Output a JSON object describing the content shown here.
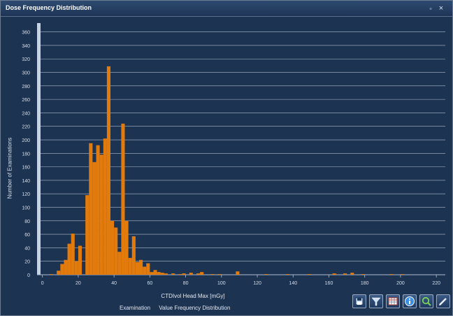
{
  "window": {
    "title": "Dose Frequency Distribution",
    "restore_glyph": "▫",
    "close_glyph": "×"
  },
  "chart_data": {
    "type": "bar",
    "xlabel": "CTDIvol Head Max    [mGy]",
    "ylabel": "Number of Examinations",
    "xlim": [
      -3,
      225
    ],
    "ylim": [
      0,
      370
    ],
    "xticks": [
      0,
      20,
      40,
      60,
      80,
      100,
      120,
      140,
      160,
      180,
      200,
      220
    ],
    "yticks": [
      0,
      20,
      40,
      60,
      80,
      100,
      120,
      140,
      160,
      180,
      200,
      220,
      240,
      260,
      280,
      300,
      320,
      340,
      360
    ],
    "bin_width": 2,
    "bar_color": "#e27a0c",
    "background": "#1d3352",
    "grid": true,
    "series": [
      {
        "bins": [
          {
            "x": 4,
            "y": 1
          },
          {
            "x": 8,
            "y": 6
          },
          {
            "x": 10,
            "y": 16
          },
          {
            "x": 12,
            "y": 22
          },
          {
            "x": 14,
            "y": 46
          },
          {
            "x": 16,
            "y": 61
          },
          {
            "x": 18,
            "y": 20
          },
          {
            "x": 20,
            "y": 43
          },
          {
            "x": 24,
            "y": 118
          },
          {
            "x": 26,
            "y": 195
          },
          {
            "x": 28,
            "y": 167
          },
          {
            "x": 30,
            "y": 192
          },
          {
            "x": 32,
            "y": 178
          },
          {
            "x": 34,
            "y": 202
          },
          {
            "x": 36,
            "y": 309
          },
          {
            "x": 38,
            "y": 80
          },
          {
            "x": 40,
            "y": 70
          },
          {
            "x": 42,
            "y": 34
          },
          {
            "x": 44,
            "y": 224
          },
          {
            "x": 46,
            "y": 80
          },
          {
            "x": 48,
            "y": 25
          },
          {
            "x": 50,
            "y": 57
          },
          {
            "x": 52,
            "y": 19
          },
          {
            "x": 54,
            "y": 22
          },
          {
            "x": 56,
            "y": 12
          },
          {
            "x": 58,
            "y": 17
          },
          {
            "x": 60,
            "y": 4
          },
          {
            "x": 62,
            "y": 7
          },
          {
            "x": 64,
            "y": 4
          },
          {
            "x": 66,
            "y": 3
          },
          {
            "x": 68,
            "y": 2
          },
          {
            "x": 72,
            "y": 2
          },
          {
            "x": 76,
            "y": 1
          },
          {
            "x": 78,
            "y": 2
          },
          {
            "x": 82,
            "y": 3
          },
          {
            "x": 86,
            "y": 2
          },
          {
            "x": 88,
            "y": 4
          },
          {
            "x": 94,
            "y": 1
          },
          {
            "x": 98,
            "y": 1
          },
          {
            "x": 108,
            "y": 5
          },
          {
            "x": 124,
            "y": 1
          },
          {
            "x": 136,
            "y": 1
          },
          {
            "x": 148,
            "y": 1
          },
          {
            "x": 162,
            "y": 2
          },
          {
            "x": 168,
            "y": 2
          },
          {
            "x": 172,
            "y": 3
          },
          {
            "x": 178,
            "y": 1
          },
          {
            "x": 194,
            "y": 1
          },
          {
            "x": 200,
            "y": 1
          }
        ]
      }
    ],
    "legend": [
      "Examination",
      "Value Frequency Distribution"
    ]
  },
  "toolbar": [
    {
      "name": "save-icon",
      "color": "#cfe0f5"
    },
    {
      "name": "filter-icon",
      "color": "#cfe0f5"
    },
    {
      "name": "table-icon",
      "color": "#ffffff"
    },
    {
      "name": "info-icon",
      "color": "#3b8fe8"
    },
    {
      "name": "zoom-icon",
      "color": "#7bd35a"
    },
    {
      "name": "edit-icon",
      "color": "#e8eef6"
    }
  ]
}
